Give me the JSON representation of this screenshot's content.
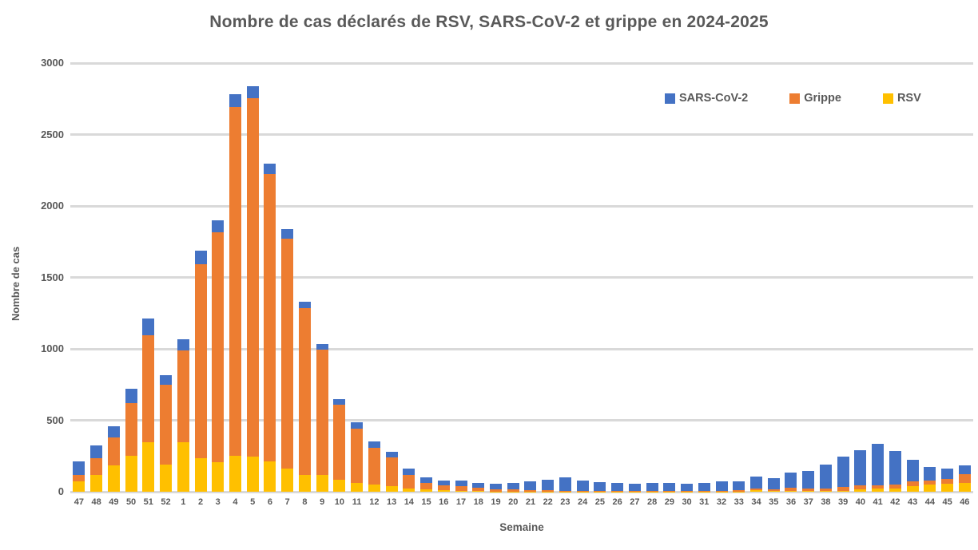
{
  "title": "Nombre de cas déclarés de RSV, SARS-CoV-2 et grippe en 2024-2025",
  "colors": {
    "text": "#595959",
    "gridline": "#D9D9D9",
    "background": "#FFFFFF",
    "sars_cov_2": "#4472C4",
    "grippe": "#ED7D31",
    "rsv": "#FFC000"
  },
  "legend": [
    {
      "label": "SARS-CoV-2",
      "color": "#4472C4"
    },
    {
      "label": "Grippe",
      "color": "#ED7D31"
    },
    {
      "label": "RSV",
      "color": "#FFC000"
    }
  ],
  "chart_data": {
    "type": "bar",
    "stacked": true,
    "title": "Nombre de cas déclarés de RSV, SARS-CoV-2 et grippe en 2024-2025",
    "xlabel": "Semaine",
    "ylabel": "Nombre de cas",
    "ylim": [
      0,
      3000
    ],
    "yticks": [
      0,
      500,
      1000,
      1500,
      2000,
      2500,
      3000
    ],
    "grid": "horizontal",
    "legend_position": "top-right",
    "categories": [
      "47",
      "48",
      "49",
      "50",
      "51",
      "52",
      "1",
      "2",
      "3",
      "4",
      "5",
      "6",
      "7",
      "8",
      "9",
      "10",
      "11",
      "12",
      "13",
      "14",
      "15",
      "16",
      "17",
      "18",
      "19",
      "20",
      "21",
      "22",
      "23",
      "24",
      "25",
      "26",
      "27",
      "28",
      "29",
      "30",
      "31",
      "32",
      "33",
      "34",
      "35",
      "36",
      "37",
      "38",
      "39",
      "40",
      "41",
      "42",
      "43",
      "44",
      "45",
      "46"
    ],
    "series": [
      {
        "name": "RSV",
        "color": "#FFC000",
        "values": [
          70,
          120,
          185,
          250,
          345,
          190,
          345,
          235,
          205,
          250,
          245,
          215,
          160,
          120,
          115,
          85,
          60,
          50,
          40,
          22,
          15,
          11,
          8,
          3,
          2,
          2,
          2,
          2,
          2,
          1,
          1,
          1,
          1,
          1,
          1,
          1,
          1,
          1,
          2,
          10,
          5,
          5,
          5,
          5,
          8,
          17,
          20,
          24,
          39,
          50,
          54,
          61
        ]
      },
      {
        "name": "Grippe",
        "color": "#ED7D31",
        "values": [
          45,
          115,
          195,
          370,
          750,
          560,
          645,
          1355,
          1610,
          2445,
          2510,
          2010,
          1610,
          1165,
          880,
          523,
          380,
          260,
          200,
          94,
          46,
          35,
          33,
          23,
          13,
          15,
          9,
          8,
          6,
          6,
          5,
          4,
          4,
          4,
          4,
          4,
          4,
          5,
          8,
          12,
          12,
          25,
          15,
          20,
          25,
          26,
          26,
          26,
          33,
          29,
          36,
          62
        ]
      },
      {
        "name": "SARS-CoV-2",
        "color": "#4472C4",
        "values": [
          95,
          90,
          80,
          100,
          115,
          65,
          75,
          100,
          85,
          85,
          85,
          70,
          70,
          45,
          40,
          42,
          45,
          40,
          42,
          46,
          42,
          31,
          40,
          36,
          40,
          42,
          62,
          73,
          91,
          70,
          60,
          54,
          50,
          54,
          57,
          50,
          54,
          64,
          63,
          85,
          78,
          105,
          125,
          165,
          212,
          246,
          291,
          236,
          151,
          96,
          74,
          59
        ]
      }
    ]
  }
}
